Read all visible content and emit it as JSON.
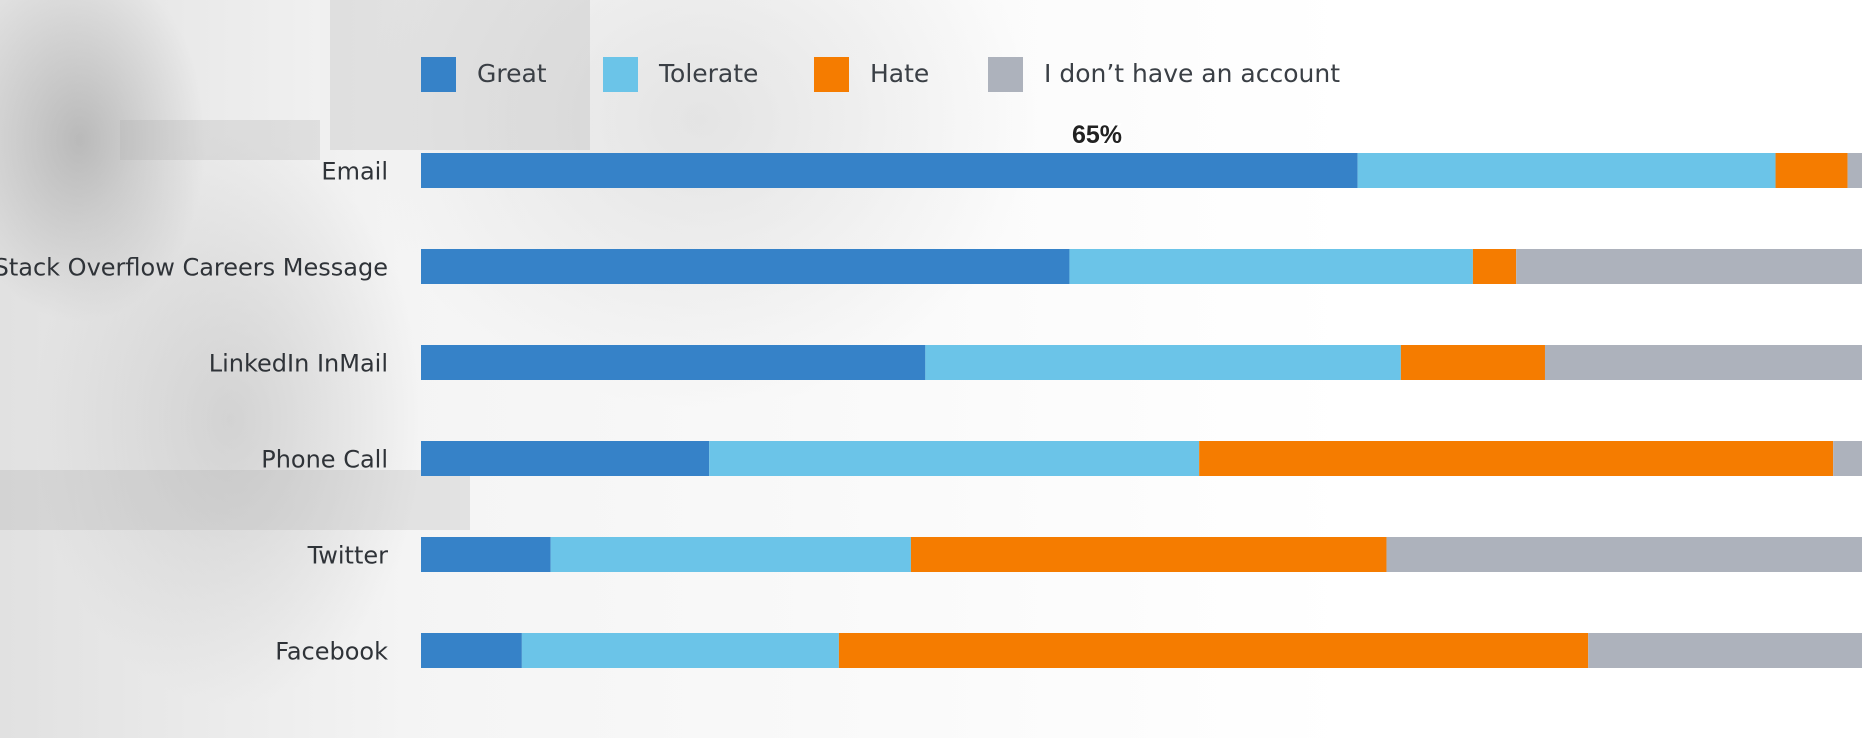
{
  "chart_data": {
    "type": "bar",
    "orientation": "horizontal",
    "stacked": true,
    "title": "",
    "xlabel": "",
    "ylabel": "",
    "xlim": [
      0,
      100
    ],
    "grid": false,
    "legend_position": "top",
    "categories": [
      "Email",
      "Stack Overflow Careers Message",
      "LinkedIn InMail",
      "Phone Call",
      "Twitter",
      "Facebook"
    ],
    "series": [
      {
        "name": "Great",
        "color": "#3682c8",
        "values": [
          65,
          45,
          35,
          20,
          9,
          7
        ]
      },
      {
        "name": "Tolerate",
        "color": "#6bc4e8",
        "values": [
          29,
          28,
          33,
          34,
          25,
          22
        ]
      },
      {
        "name": "Hate",
        "color": "#f57c00",
        "values": [
          5,
          3,
          10,
          44,
          33,
          52
        ]
      },
      {
        "name": "I don’t have an account",
        "color": "#adb2bc",
        "values": [
          1,
          24,
          22,
          2,
          33,
          19
        ]
      }
    ],
    "annotations": [
      {
        "category": "Email",
        "series": "Great",
        "text": "65%"
      }
    ]
  }
}
